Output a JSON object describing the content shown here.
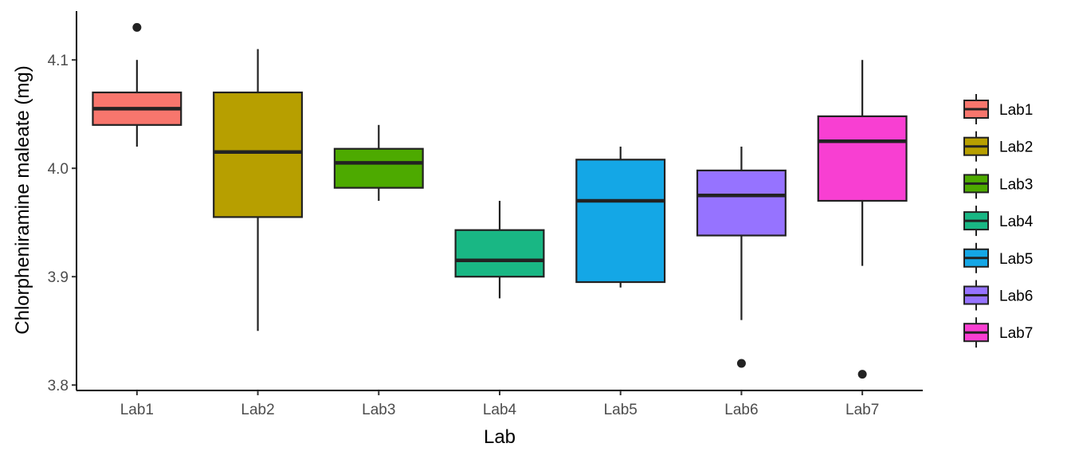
{
  "chart_data": {
    "type": "boxplot",
    "title": "",
    "xlabel": "Lab",
    "ylabel": "Chlorpheniramine maleate (mg)",
    "ylim": [
      3.795,
      4.145
    ],
    "yticks": [
      3.8,
      3.9,
      4.0,
      4.1
    ],
    "ytick_labels": [
      "3.8",
      "3.9",
      "4.0",
      "4.1"
    ],
    "grid": false,
    "legend_position": "right",
    "categories": [
      "Lab1",
      "Lab2",
      "Lab3",
      "Lab4",
      "Lab5",
      "Lab6",
      "Lab7"
    ],
    "series": [
      {
        "label": "Lab1",
        "color": "#F8766D",
        "whisker_low": 4.02,
        "q1": 4.04,
        "median": 4.055,
        "q3": 4.07,
        "whisker_high": 4.1,
        "outliers": [
          4.13
        ]
      },
      {
        "label": "Lab2",
        "color": "#B79F00",
        "whisker_low": 3.85,
        "q1": 3.955,
        "median": 4.015,
        "q3": 4.07,
        "whisker_high": 4.11,
        "outliers": []
      },
      {
        "label": "Lab3",
        "color": "#4DAA00",
        "whisker_low": 3.97,
        "q1": 3.982,
        "median": 4.005,
        "q3": 4.018,
        "whisker_high": 4.04,
        "outliers": []
      },
      {
        "label": "Lab4",
        "color": "#19B784",
        "whisker_low": 3.88,
        "q1": 3.9,
        "median": 3.915,
        "q3": 3.943,
        "whisker_high": 3.97,
        "outliers": []
      },
      {
        "label": "Lab5",
        "color": "#14A7E6",
        "whisker_low": 3.89,
        "q1": 3.895,
        "median": 3.97,
        "q3": 4.008,
        "whisker_high": 4.02,
        "outliers": []
      },
      {
        "label": "Lab6",
        "color": "#9673FF",
        "whisker_low": 3.86,
        "q1": 3.938,
        "median": 3.975,
        "q3": 3.998,
        "whisker_high": 4.02,
        "outliers": [
          3.82
        ]
      },
      {
        "label": "Lab7",
        "color": "#F83FD2",
        "whisker_low": 3.91,
        "q1": 3.97,
        "median": 4.025,
        "q3": 4.048,
        "whisker_high": 4.1,
        "outliers": [
          3.81
        ]
      }
    ]
  }
}
